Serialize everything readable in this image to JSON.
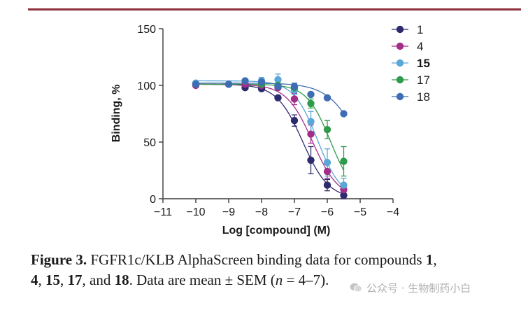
{
  "chart_data": {
    "type": "scatter",
    "xlabel": "Log [compound] (M)",
    "ylabel": "Binding, %",
    "xlim": [
      -11,
      -4
    ],
    "ylim": [
      0,
      150
    ],
    "xticks": [
      -11,
      -10,
      -9,
      -8,
      -7,
      -6,
      -5,
      -4
    ],
    "xtick_labels": [
      "−11",
      "−10",
      "−9",
      "−8",
      "−7",
      "−6",
      "−5",
      "−4"
    ],
    "yticks": [
      0,
      50,
      100,
      150
    ],
    "ytick_labels": [
      "0",
      "50",
      "100",
      "150"
    ],
    "legend_position": "right",
    "series": [
      {
        "name": "1",
        "bold": false,
        "color": "#2e2a6e",
        "x": [
          -10,
          -9,
          -8.5,
          -8,
          -7.5,
          -7,
          -6.5,
          -6,
          -5.5
        ],
        "y": [
          101,
          101,
          98,
          97,
          89,
          69,
          34,
          12,
          3
        ],
        "err": [
          0,
          0,
          0,
          0,
          0,
          5,
          12,
          5,
          3
        ],
        "logEC50": -6.75,
        "top": 101,
        "bottom": 0,
        "hill": 1.1
      },
      {
        "name": "4",
        "bold": false,
        "color": "#a42d8a",
        "x": [
          -10,
          -9,
          -8.5,
          -8,
          -7.5,
          -7,
          -6.5,
          -6,
          -5.5
        ],
        "y": [
          100,
          101,
          101,
          100,
          98,
          88,
          57,
          24,
          8
        ],
        "err": [
          0,
          0,
          0,
          0,
          0,
          5,
          8,
          6,
          4
        ],
        "logEC50": -6.45,
        "top": 101,
        "bottom": 0,
        "hill": 1.1
      },
      {
        "name": "15",
        "bold": true,
        "color": "#5aa7d8",
        "x": [
          -10,
          -9,
          -8.5,
          -8,
          -7.5,
          -7,
          -6.5,
          -6,
          -5.5
        ],
        "y": [
          102,
          101,
          104,
          104,
          105,
          96,
          68,
          32,
          12
        ],
        "err": [
          0,
          0,
          0,
          3,
          5,
          4,
          9,
          12,
          6
        ],
        "logEC50": -6.3,
        "top": 104,
        "bottom": 0,
        "hill": 1.2
      },
      {
        "name": "17",
        "bold": false,
        "color": "#2e9a4b",
        "x": [
          -10,
          -9,
          -8,
          -7.5,
          -7,
          -6.5,
          -6,
          -5.5
        ],
        "y": [
          101,
          101,
          101,
          100,
          98,
          84,
          61,
          33
        ],
        "err": [
          0,
          0,
          0,
          0,
          3,
          4,
          8,
          13
        ],
        "logEC50": -5.9,
        "top": 101,
        "bottom": 0,
        "hill": 1.2
      },
      {
        "name": "18",
        "bold": false,
        "color": "#3f6db3",
        "x": [
          -10,
          -9,
          -8.5,
          -8,
          -7.5,
          -7,
          -6.5,
          -6,
          -5.5
        ],
        "y": [
          101,
          101,
          104,
          103,
          99,
          99,
          92,
          89,
          75
        ],
        "err": [
          0,
          0,
          0,
          0,
          0,
          3,
          0,
          0,
          0
        ],
        "logEC50": -5.0,
        "top": 102,
        "bottom": 0,
        "hill": 0.9
      }
    ]
  },
  "caption": {
    "prefix": "Figure 3.",
    "text1": " FGFR1c/KLB AlphaScreen binding data for compounds ",
    "c1": "1",
    "sep1": ",",
    "c4": "4",
    "sep2": ", ",
    "c15": "15",
    "sep3": ", ",
    "c17": "17",
    "sep4": ", and ",
    "c18": "18",
    "text2": ". Data are mean ± SEM (",
    "n": "n",
    "text3": " = 4–7)."
  },
  "watermark": {
    "text": "公众号 · 生物制药小白"
  }
}
